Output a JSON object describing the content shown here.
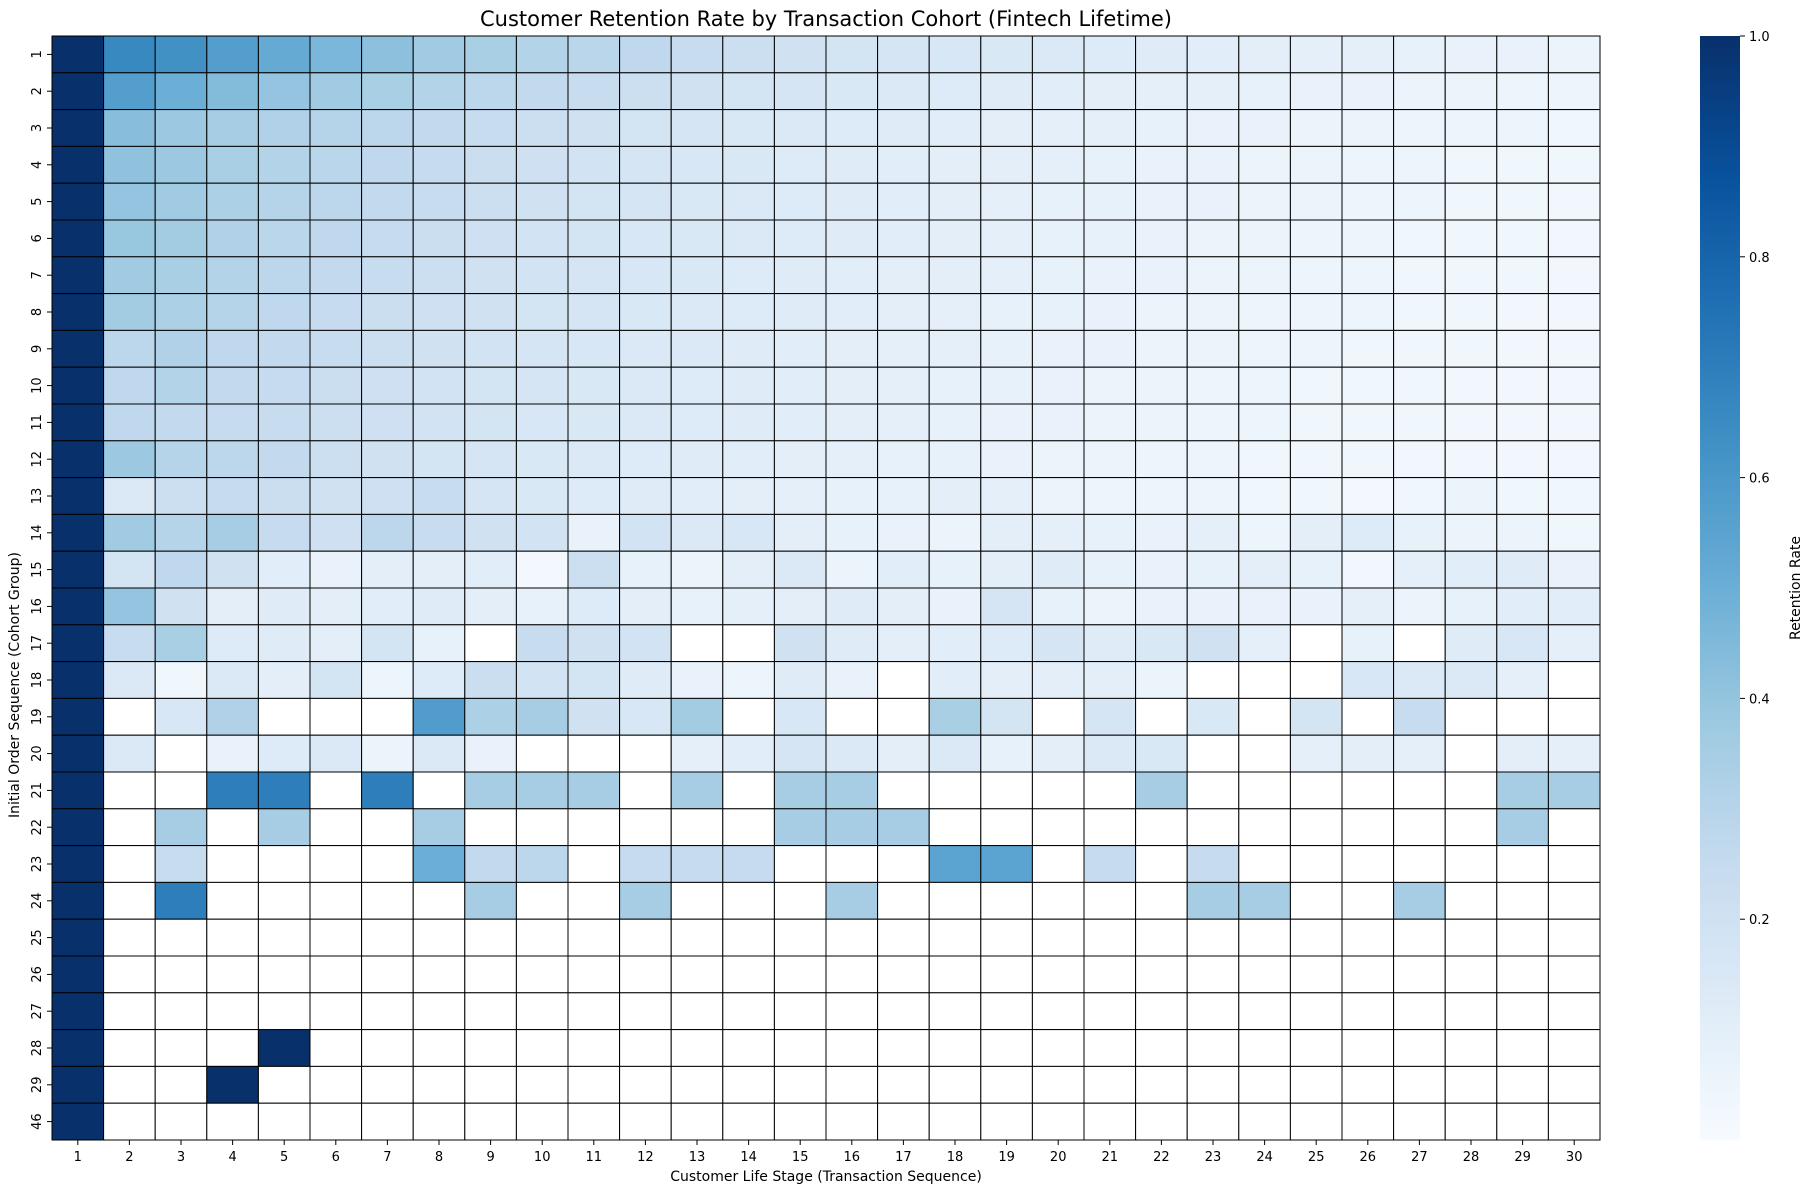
{
  "chart_data": {
    "type": "heatmap",
    "title": "Customer Retention Rate by Transaction Cohort (Fintech Lifetime)",
    "xlabel": "Customer Life Stage (Transaction Sequence)",
    "ylabel": "Initial Order Sequence (Cohort Group)",
    "colorbar_label": "Retention Rate",
    "colormap": "Blues",
    "colorbar_ticks": [
      "0.2",
      "0.4",
      "0.6",
      "0.8",
      "1.0"
    ],
    "colorbar_range": [
      0.0,
      1.0
    ],
    "x_categories": [
      "1",
      "2",
      "3",
      "4",
      "5",
      "6",
      "7",
      "8",
      "9",
      "10",
      "11",
      "12",
      "13",
      "14",
      "15",
      "16",
      "17",
      "18",
      "19",
      "20",
      "21",
      "22",
      "23",
      "24",
      "25",
      "26",
      "27",
      "28",
      "29",
      "30"
    ],
    "y_categories": [
      "1",
      "2",
      "3",
      "4",
      "5",
      "6",
      "7",
      "8",
      "9",
      "10",
      "11",
      "12",
      "13",
      "14",
      "15",
      "16",
      "17",
      "18",
      "19",
      "20",
      "21",
      "22",
      "23",
      "24",
      "25",
      "26",
      "27",
      "28",
      "29",
      "46"
    ],
    "values": [
      [
        1.0,
        0.66,
        0.63,
        0.57,
        0.52,
        0.46,
        0.42,
        0.37,
        0.34,
        0.31,
        0.29,
        0.27,
        0.24,
        0.22,
        0.2,
        0.18,
        0.17,
        0.16,
        0.15,
        0.14,
        0.13,
        0.12,
        0.11,
        0.1,
        0.09,
        0.09,
        0.08,
        0.07,
        0.07,
        0.06
      ],
      [
        1.0,
        0.57,
        0.5,
        0.44,
        0.4,
        0.37,
        0.34,
        0.31,
        0.28,
        0.26,
        0.24,
        0.22,
        0.2,
        0.18,
        0.17,
        0.15,
        0.14,
        0.13,
        0.12,
        0.11,
        0.1,
        0.09,
        0.09,
        0.08,
        0.07,
        0.07,
        0.06,
        0.06,
        0.05,
        0.05
      ],
      [
        1.0,
        0.43,
        0.38,
        0.35,
        0.32,
        0.3,
        0.28,
        0.26,
        0.24,
        0.22,
        0.2,
        0.18,
        0.17,
        0.15,
        0.14,
        0.13,
        0.12,
        0.11,
        0.1,
        0.09,
        0.09,
        0.08,
        0.07,
        0.07,
        0.06,
        0.06,
        0.05,
        0.05,
        0.05,
        0.04
      ],
      [
        1.0,
        0.41,
        0.38,
        0.34,
        0.31,
        0.29,
        0.27,
        0.25,
        0.23,
        0.21,
        0.19,
        0.17,
        0.16,
        0.15,
        0.13,
        0.12,
        0.11,
        0.1,
        0.1,
        0.09,
        0.08,
        0.07,
        0.07,
        0.06,
        0.06,
        0.05,
        0.05,
        0.04,
        0.04,
        0.04
      ],
      [
        1.0,
        0.4,
        0.37,
        0.33,
        0.3,
        0.28,
        0.26,
        0.24,
        0.22,
        0.2,
        0.18,
        0.17,
        0.15,
        0.14,
        0.13,
        0.12,
        0.11,
        0.1,
        0.09,
        0.08,
        0.08,
        0.07,
        0.07,
        0.06,
        0.06,
        0.05,
        0.05,
        0.04,
        0.04,
        0.03
      ],
      [
        1.0,
        0.39,
        0.36,
        0.32,
        0.29,
        0.27,
        0.25,
        0.23,
        0.21,
        0.19,
        0.18,
        0.16,
        0.15,
        0.14,
        0.13,
        0.12,
        0.11,
        0.1,
        0.09,
        0.08,
        0.08,
        0.07,
        0.06,
        0.06,
        0.05,
        0.05,
        0.04,
        0.04,
        0.04,
        0.03
      ],
      [
        1.0,
        0.37,
        0.34,
        0.31,
        0.28,
        0.26,
        0.24,
        0.22,
        0.2,
        0.19,
        0.17,
        0.16,
        0.15,
        0.13,
        0.12,
        0.11,
        0.1,
        0.1,
        0.09,
        0.08,
        0.07,
        0.07,
        0.06,
        0.06,
        0.05,
        0.05,
        0.04,
        0.04,
        0.04,
        0.03
      ],
      [
        1.0,
        0.36,
        0.33,
        0.3,
        0.27,
        0.25,
        0.23,
        0.21,
        0.2,
        0.18,
        0.17,
        0.15,
        0.14,
        0.13,
        0.12,
        0.11,
        0.1,
        0.09,
        0.08,
        0.08,
        0.07,
        0.06,
        0.06,
        0.05,
        0.05,
        0.05,
        0.04,
        0.04,
        0.03,
        0.03
      ],
      [
        1.0,
        0.28,
        0.32,
        0.27,
        0.26,
        0.24,
        0.22,
        0.2,
        0.19,
        0.17,
        0.16,
        0.14,
        0.14,
        0.12,
        0.11,
        0.1,
        0.09,
        0.09,
        0.08,
        0.07,
        0.07,
        0.06,
        0.06,
        0.05,
        0.05,
        0.04,
        0.04,
        0.04,
        0.03,
        0.03
      ],
      [
        1.0,
        0.27,
        0.31,
        0.26,
        0.25,
        0.23,
        0.21,
        0.19,
        0.18,
        0.17,
        0.15,
        0.14,
        0.13,
        0.12,
        0.11,
        0.1,
        0.09,
        0.08,
        0.08,
        0.07,
        0.06,
        0.06,
        0.05,
        0.05,
        0.04,
        0.04,
        0.04,
        0.03,
        0.03,
        0.03
      ],
      [
        1.0,
        0.27,
        0.26,
        0.25,
        0.24,
        0.22,
        0.21,
        0.19,
        0.18,
        0.16,
        0.15,
        0.14,
        0.13,
        0.12,
        0.11,
        0.1,
        0.09,
        0.08,
        0.07,
        0.07,
        0.06,
        0.06,
        0.05,
        0.05,
        0.04,
        0.04,
        0.04,
        0.03,
        0.03,
        0.03
      ],
      [
        1.0,
        0.38,
        0.3,
        0.28,
        0.26,
        0.22,
        0.2,
        0.18,
        0.17,
        0.15,
        0.14,
        0.13,
        0.12,
        0.11,
        0.1,
        0.09,
        0.08,
        0.08,
        0.07,
        0.06,
        0.06,
        0.05,
        0.05,
        0.04,
        0.04,
        0.04,
        0.03,
        0.03,
        0.03,
        0.03
      ],
      [
        1.0,
        0.14,
        0.22,
        0.25,
        0.23,
        0.2,
        0.21,
        0.24,
        0.17,
        0.15,
        0.13,
        0.12,
        0.11,
        0.1,
        0.09,
        0.08,
        0.08,
        0.1,
        0.09,
        0.06,
        0.05,
        0.05,
        0.05,
        0.04,
        0.04,
        0.02,
        0.04,
        0.06,
        0.04,
        0.04
      ],
      [
        1.0,
        0.37,
        0.3,
        0.35,
        0.25,
        0.21,
        0.28,
        0.24,
        0.2,
        0.19,
        0.07,
        0.19,
        0.14,
        0.16,
        0.1,
        0.08,
        0.07,
        0.06,
        0.1,
        0.09,
        0.08,
        0.07,
        0.09,
        0.05,
        0.1,
        0.13,
        0.08,
        0.06,
        0.06,
        0.04
      ],
      [
        1.0,
        0.18,
        0.27,
        0.2,
        0.11,
        0.07,
        0.1,
        0.1,
        0.11,
        0.02,
        0.22,
        0.08,
        0.06,
        0.1,
        0.14,
        0.06,
        0.11,
        0.08,
        0.1,
        0.12,
        0.08,
        0.07,
        0.08,
        0.1,
        0.08,
        0.03,
        0.09,
        0.11,
        0.12,
        0.07
      ],
      [
        1.0,
        0.4,
        0.2,
        0.1,
        0.12,
        0.1,
        0.11,
        0.12,
        0.1,
        0.08,
        0.13,
        0.1,
        0.08,
        0.09,
        0.1,
        0.12,
        0.1,
        0.07,
        0.17,
        0.08,
        0.06,
        0.07,
        0.07,
        0.07,
        0.07,
        0.09,
        0.06,
        0.08,
        0.11,
        0.11
      ],
      [
        1.0,
        0.24,
        0.34,
        0.13,
        0.12,
        0.1,
        0.18,
        0.08,
        0.0,
        0.24,
        0.2,
        0.19,
        0.0,
        0.0,
        0.2,
        0.12,
        0.1,
        0.11,
        0.13,
        0.17,
        0.12,
        0.15,
        0.2,
        0.09,
        0.0,
        0.08,
        0.0,
        0.12,
        0.16,
        0.09
      ],
      [
        1.0,
        0.14,
        0.04,
        0.14,
        0.1,
        0.18,
        0.05,
        0.13,
        0.23,
        0.19,
        0.18,
        0.12,
        0.07,
        0.05,
        0.12,
        0.07,
        0.0,
        0.11,
        0.1,
        0.1,
        0.1,
        0.06,
        0.0,
        0.0,
        0.0,
        0.16,
        0.14,
        0.14,
        0.09,
        0.0
      ],
      [
        1.0,
        0.0,
        0.16,
        0.32,
        0.0,
        0.0,
        0.0,
        0.58,
        0.33,
        0.35,
        0.2,
        0.16,
        0.36,
        0.0,
        0.16,
        0.0,
        0.0,
        0.34,
        0.18,
        0.0,
        0.17,
        0.0,
        0.15,
        0.0,
        0.18,
        0.0,
        0.24,
        0.0,
        0.0,
        0.0
      ],
      [
        1.0,
        0.14,
        0.0,
        0.07,
        0.13,
        0.14,
        0.06,
        0.14,
        0.07,
        0.0,
        0.0,
        0.0,
        0.09,
        0.11,
        0.17,
        0.14,
        0.1,
        0.14,
        0.08,
        0.1,
        0.14,
        0.15,
        0.0,
        0.0,
        0.09,
        0.1,
        0.09,
        0.0,
        0.1,
        0.09
      ],
      [
        1.0,
        0.0,
        0.0,
        0.7,
        0.7,
        0.0,
        0.7,
        0.0,
        0.35,
        0.35,
        0.35,
        0.0,
        0.35,
        0.0,
        0.35,
        0.35,
        0.0,
        0.0,
        0.0,
        0.0,
        0.0,
        0.35,
        0.0,
        0.0,
        0.0,
        0.0,
        0.0,
        0.0,
        0.35,
        0.35
      ],
      [
        1.0,
        0.0,
        0.35,
        0.0,
        0.35,
        0.0,
        0.0,
        0.35,
        0.0,
        0.0,
        0.0,
        0.0,
        0.0,
        0.0,
        0.35,
        0.35,
        0.35,
        0.0,
        0.0,
        0.0,
        0.0,
        0.0,
        0.0,
        0.0,
        0.0,
        0.0,
        0.0,
        0.0,
        0.35,
        0.0
      ],
      [
        1.0,
        0.0,
        0.24,
        0.0,
        0.0,
        0.0,
        0.0,
        0.5,
        0.26,
        0.28,
        0.0,
        0.25,
        0.25,
        0.25,
        0.0,
        0.0,
        0.0,
        0.55,
        0.55,
        0.0,
        0.25,
        0.0,
        0.25,
        0.0,
        0.0,
        0.0,
        0.0,
        0.0,
        0.0,
        0.0
      ],
      [
        1.0,
        0.0,
        0.7,
        0.0,
        0.0,
        0.0,
        0.0,
        0.0,
        0.35,
        0.0,
        0.0,
        0.35,
        0.0,
        0.0,
        0.0,
        0.35,
        0.0,
        0.0,
        0.0,
        0.0,
        0.0,
        0.0,
        0.35,
        0.35,
        0.0,
        0.0,
        0.35,
        0.0,
        0.0,
        0.0
      ],
      [
        1.0,
        0.0,
        0.0,
        0.0,
        0.0,
        0.0,
        0.0,
        0.0,
        0.0,
        0.0,
        0.0,
        0.0,
        0.0,
        0.0,
        0.0,
        0.0,
        0.0,
        0.0,
        0.0,
        0.0,
        0.0,
        0.0,
        0.0,
        0.0,
        0.0,
        0.0,
        0.0,
        0.0,
        0.0,
        0.0
      ],
      [
        1.0,
        0.0,
        0.0,
        0.0,
        0.0,
        0.0,
        0.0,
        0.0,
        0.0,
        0.0,
        0.0,
        0.0,
        0.0,
        0.0,
        0.0,
        0.0,
        0.0,
        0.0,
        0.0,
        0.0,
        0.0,
        0.0,
        0.0,
        0.0,
        0.0,
        0.0,
        0.0,
        0.0,
        0.0,
        0.0
      ],
      [
        1.0,
        0.0,
        0.0,
        0.0,
        0.0,
        0.0,
        0.0,
        0.0,
        0.0,
        0.0,
        0.0,
        0.0,
        0.0,
        0.0,
        0.0,
        0.0,
        0.0,
        0.0,
        0.0,
        0.0,
        0.0,
        0.0,
        0.0,
        0.0,
        0.0,
        0.0,
        0.0,
        0.0,
        0.0,
        0.0
      ],
      [
        1.0,
        0.0,
        0.0,
        0.0,
        1.0,
        0.0,
        0.0,
        0.0,
        0.0,
        0.0,
        0.0,
        0.0,
        0.0,
        0.0,
        0.0,
        0.0,
        0.0,
        0.0,
        0.0,
        0.0,
        0.0,
        0.0,
        0.0,
        0.0,
        0.0,
        0.0,
        0.0,
        0.0,
        0.0,
        0.0
      ],
      [
        1.0,
        0.0,
        0.0,
        1.0,
        0.0,
        0.0,
        0.0,
        0.0,
        0.0,
        0.0,
        0.0,
        0.0,
        0.0,
        0.0,
        0.0,
        0.0,
        0.0,
        0.0,
        0.0,
        0.0,
        0.0,
        0.0,
        0.0,
        0.0,
        0.0,
        0.0,
        0.0,
        0.0,
        0.0,
        0.0
      ],
      [
        1.0,
        0.0,
        0.0,
        0.0,
        0.0,
        0.0,
        0.0,
        0.0,
        0.0,
        0.0,
        0.0,
        0.0,
        0.0,
        0.0,
        0.0,
        0.0,
        0.0,
        0.0,
        0.0,
        0.0,
        0.0,
        0.0,
        0.0,
        0.0,
        0.0,
        0.0,
        0.0,
        0.0,
        0.0,
        0.0
      ]
    ]
  }
}
